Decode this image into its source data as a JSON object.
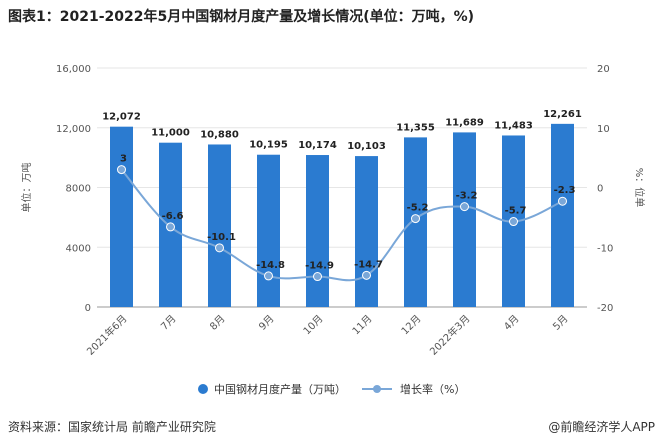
{
  "title": "图表1：2021-2022年5月中国钢材月度产量及增长情况(单位：万吨，%)",
  "source": "资料来源：国家统计局 前瞻产业研究院",
  "brand": "@前瞻经济学人APP",
  "colors": {
    "bar": "#2b7bd0",
    "line": "#7aa7d8",
    "grid": "#e6e6e6"
  },
  "chart_data": {
    "type": "bar",
    "categories": [
      "2021年6月",
      "7月",
      "8月",
      "9月",
      "10月",
      "11月",
      "12月",
      "2022年3月",
      "4月",
      "5月"
    ],
    "series": [
      {
        "name": "中国钢材月度产量（万吨）",
        "type": "bar",
        "axis": "left",
        "values": [
          12072,
          11000,
          10880,
          10195,
          10174,
          10103,
          11355,
          11689,
          11483,
          12261
        ],
        "labels": [
          "12,072",
          "11,000",
          "10,880",
          "10,195",
          "10,174",
          "10,103",
          "11,355",
          "11,689",
          "11,483",
          "12,261"
        ]
      },
      {
        "name": "增长率（%）",
        "type": "line",
        "axis": "right",
        "values": [
          3,
          -6.6,
          -10.1,
          -14.8,
          -14.9,
          -14.7,
          -5.2,
          -3.2,
          -5.7,
          -2.3
        ],
        "labels": [
          "3",
          "-6.6",
          "-10.1",
          "-14.8",
          "-14.9",
          "-14.7",
          "-5.2",
          "-3.2",
          "-5.7",
          "-2.3"
        ]
      }
    ],
    "ylabel": "单位：万吨",
    "y2label": "%：位单",
    "ylim": [
      0,
      16000
    ],
    "y2lim": [
      -20,
      20
    ],
    "yticks": [
      0,
      4000,
      8000,
      12000,
      16000
    ],
    "ytick_labels": [
      "0",
      "4000",
      "8000",
      "12,000",
      "16,000"
    ],
    "y2ticks": [
      -20,
      -10,
      0,
      10,
      20
    ],
    "y2tick_labels": [
      "-20",
      "-10",
      "0",
      "10",
      "20"
    ],
    "grid": true,
    "legend_position": "bottom"
  }
}
